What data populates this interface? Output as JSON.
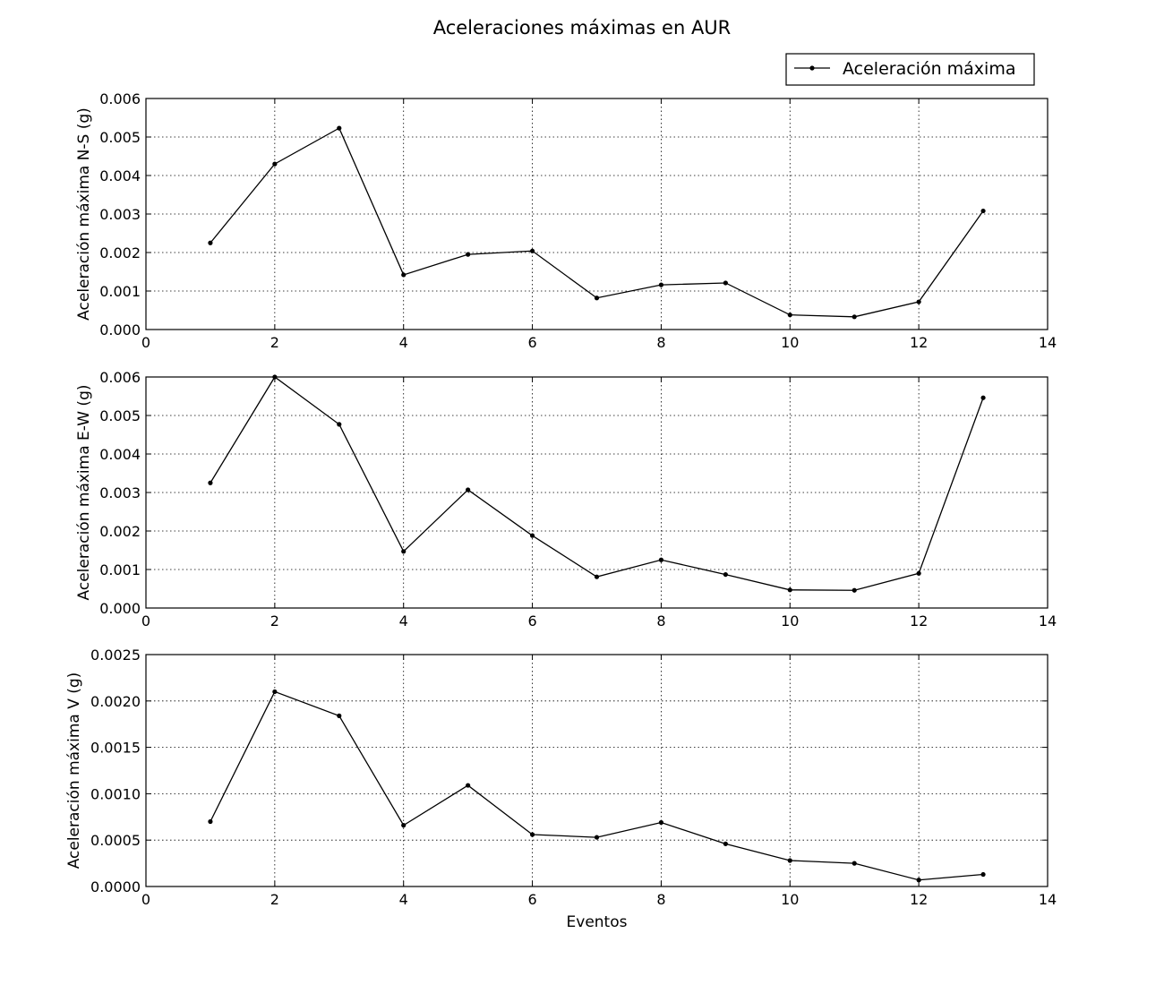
{
  "chart_data": {
    "title": "Aceleraciones máximas en AUR",
    "legend": {
      "label": "Aceleración máxima",
      "placement": "upper-right"
    },
    "type": "line",
    "grid": true,
    "subplots": [
      {
        "type": "line",
        "xlabel": "",
        "ylabel": "Aceleración máxima N-S (g)",
        "xlim": [
          0,
          14
        ],
        "ylim": [
          0,
          0.006
        ],
        "xticks": [
          "0",
          "2",
          "4",
          "6",
          "8",
          "10",
          "12",
          "14"
        ],
        "yticks": [
          "0.000",
          "0.001",
          "0.002",
          "0.003",
          "0.004",
          "0.005",
          "0.006"
        ],
        "x": [
          1,
          2,
          3,
          4,
          5,
          6,
          7,
          8,
          9,
          10,
          11,
          12,
          13
        ],
        "values": [
          0.00225,
          0.0043,
          0.00523,
          0.00142,
          0.00195,
          0.00204,
          0.00082,
          0.00116,
          0.00121,
          0.00038,
          0.00033,
          0.00072,
          0.00308
        ]
      },
      {
        "type": "line",
        "xlabel": "",
        "ylabel": "Aceleración máxima E-W (g)",
        "xlim": [
          0,
          14
        ],
        "ylim": [
          0,
          0.006
        ],
        "xticks": [
          "0",
          "2",
          "4",
          "6",
          "8",
          "10",
          "12",
          "14"
        ],
        "yticks": [
          "0.000",
          "0.001",
          "0.002",
          "0.003",
          "0.004",
          "0.005",
          "0.006"
        ],
        "x": [
          1,
          2,
          3,
          4,
          5,
          6,
          7,
          8,
          9,
          10,
          11,
          12,
          13
        ],
        "values": [
          0.00325,
          0.006,
          0.00477,
          0.00147,
          0.00307,
          0.00188,
          0.00081,
          0.00125,
          0.00087,
          0.00047,
          0.00046,
          0.0009,
          0.00546
        ]
      },
      {
        "type": "line",
        "xlabel": "Eventos",
        "ylabel": "Aceleración máxima V (g)",
        "xlim": [
          0,
          14
        ],
        "ylim": [
          0,
          0.0025
        ],
        "xticks": [
          "0",
          "2",
          "4",
          "6",
          "8",
          "10",
          "12",
          "14"
        ],
        "yticks": [
          "0.0000",
          "0.0005",
          "0.0010",
          "0.0015",
          "0.0020",
          "0.0025"
        ],
        "x": [
          1,
          2,
          3,
          4,
          5,
          6,
          7,
          8,
          9,
          10,
          11,
          12,
          13
        ],
        "values": [
          0.0007,
          0.0021,
          0.00184,
          0.00066,
          0.00109,
          0.00056,
          0.00053,
          0.00069,
          0.00046,
          0.00028,
          0.00025,
          7e-05,
          0.00013
        ]
      }
    ]
  }
}
